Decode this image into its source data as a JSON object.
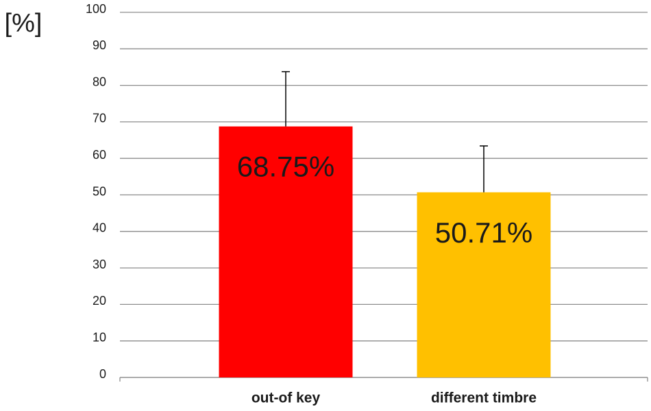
{
  "chart_data": {
    "type": "bar",
    "y_label": "[%]",
    "categories": [
      "out-of key",
      "different timbre"
    ],
    "values": [
      68.75,
      50.71
    ],
    "value_labels": [
      "68.75%",
      "50.71%"
    ],
    "errors": [
      15,
      12.7
    ],
    "colors": [
      "#ff0000",
      "#ffc000"
    ],
    "ylim": [
      0,
      100
    ],
    "yticks": [
      0,
      10,
      20,
      30,
      40,
      50,
      60,
      70,
      80,
      90,
      100
    ],
    "grid": true
  }
}
